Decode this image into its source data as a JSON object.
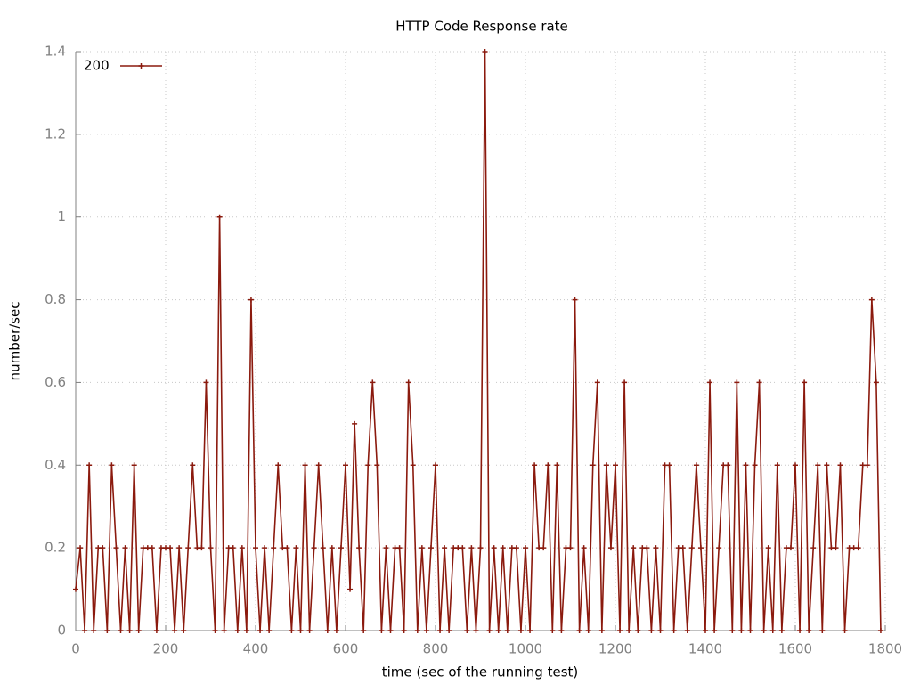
{
  "chart_data": {
    "type": "line",
    "title": "HTTP Code Response rate",
    "x_label": "time (sec of the running test)",
    "y_label": "number/sec",
    "xlim": [
      0,
      1800
    ],
    "xticks": [
      0,
      200,
      400,
      600,
      800,
      1000,
      1200,
      1400,
      1600,
      1800
    ],
    "ylim": [
      0,
      1.4
    ],
    "yticks": [
      0,
      0.2,
      0.4,
      0.6,
      0.8,
      1,
      1.2,
      1.4
    ],
    "grid": true,
    "legend": "top-left",
    "x": [
      0,
      10,
      20,
      30,
      40,
      50,
      60,
      70,
      80,
      90,
      100,
      110,
      120,
      130,
      140,
      150,
      160,
      170,
      180,
      190,
      200,
      210,
      220,
      230,
      240,
      250,
      260,
      270,
      280,
      290,
      300,
      310,
      320,
      330,
      340,
      350,
      360,
      370,
      380,
      390,
      400,
      410,
      420,
      430,
      440,
      450,
      460,
      470,
      480,
      490,
      500,
      510,
      520,
      530,
      540,
      550,
      560,
      570,
      580,
      590,
      600,
      610,
      620,
      630,
      640,
      650,
      660,
      670,
      680,
      690,
      700,
      710,
      720,
      730,
      740,
      750,
      760,
      770,
      780,
      790,
      800,
      810,
      820,
      830,
      840,
      850,
      860,
      870,
      880,
      890,
      900,
      910,
      920,
      930,
      940,
      950,
      960,
      970,
      980,
      990,
      1000,
      1010,
      1020,
      1030,
      1040,
      1050,
      1060,
      1070,
      1080,
      1090,
      1100,
      1110,
      1120,
      1130,
      1140,
      1150,
      1160,
      1170,
      1180,
      1190,
      1200,
      1210,
      1220,
      1230,
      1240,
      1250,
      1260,
      1270,
      1280,
      1290,
      1300,
      1310,
      1320,
      1330,
      1340,
      1350,
      1360,
      1370,
      1380,
      1390,
      1400,
      1410,
      1420,
      1430,
      1440,
      1450,
      1460,
      1470,
      1480,
      1490,
      1500,
      1510,
      1520,
      1530,
      1540,
      1550,
      1560,
      1570,
      1580,
      1590,
      1600,
      1610,
      1620,
      1630,
      1640,
      1650,
      1660,
      1670,
      1680,
      1690,
      1700,
      1710,
      1720,
      1730,
      1740,
      1750,
      1760,
      1770,
      1780,
      1790
    ],
    "series": [
      {
        "name": "200",
        "color": "#8b1a0e",
        "values": [
          0.1,
          0.2,
          0,
          0.4,
          0,
          0.2,
          0.2,
          0,
          0.4,
          0.2,
          0,
          0.2,
          0,
          0.4,
          0,
          0.2,
          0.2,
          0.2,
          0,
          0.2,
          0.2,
          0.2,
          0,
          0.2,
          0,
          0.2,
          0.4,
          0.2,
          0.2,
          0.6,
          0.2,
          0,
          1.0,
          0,
          0.2,
          0.2,
          0,
          0.2,
          0,
          0.8,
          0.2,
          0,
          0.2,
          0,
          0.2,
          0.4,
          0.2,
          0.2,
          0,
          0.2,
          0,
          0.4,
          0,
          0.2,
          0.4,
          0.2,
          0,
          0.2,
          0,
          0.2,
          0.4,
          0.1,
          0.5,
          0.2,
          0,
          0.4,
          0.6,
          0.4,
          0,
          0.2,
          0,
          0.2,
          0.2,
          0,
          0.6,
          0.4,
          0,
          0.2,
          0,
          0.2,
          0.4,
          0,
          0.2,
          0,
          0.2,
          0.2,
          0.2,
          0,
          0.2,
          0,
          0.2,
          1.4,
          0,
          0.2,
          0,
          0.2,
          0,
          0.2,
          0.2,
          0,
          0.2,
          0,
          0.4,
          0.2,
          0.2,
          0.4,
          0,
          0.4,
          0,
          0.2,
          0.2,
          0.8,
          0,
          0.2,
          0,
          0.4,
          0.6,
          0,
          0.4,
          0.2,
          0.4,
          0,
          0.6,
          0,
          0.2,
          0,
          0.2,
          0.2,
          0,
          0.2,
          0,
          0.4,
          0.4,
          0,
          0.2,
          0.2,
          0,
          0.2,
          0.4,
          0.2,
          0,
          0.6,
          0,
          0.2,
          0.4,
          0.4,
          0,
          0.6,
          0,
          0.4,
          0,
          0.4,
          0.6,
          0,
          0.2,
          0,
          0.4,
          0,
          0.2,
          0.2,
          0.4,
          0,
          0.6,
          0,
          0.2,
          0.4,
          0,
          0.4,
          0.2,
          0.2,
          0.4,
          0,
          0.2,
          0.2,
          0.2,
          0.4,
          0.4,
          0.8,
          0.6,
          0
        ]
      }
    ]
  }
}
